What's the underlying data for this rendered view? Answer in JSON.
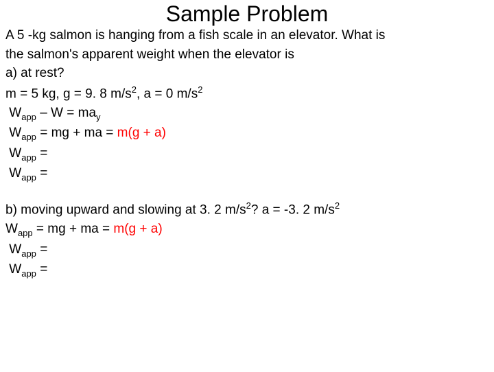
{
  "title": "Sample Problem",
  "intro1": "A 5 -kg salmon is hanging from a fish scale in an elevator. What is",
  "intro2": "the salmon's apparent weight when the elevator is",
  "partA": {
    "question": "a)  at rest?",
    "given": "m = 5 kg, g = 9. 8 m/s",
    "given_sup": "2",
    "given2": ", a = 0 m/s",
    "given2_sup": "2",
    "eq1_pre": "W",
    "eq1_sub": "app",
    "eq1_post": " – W = ma",
    "eq1_sub2": "y",
    "eq2_pre": "W",
    "eq2_sub": "app",
    "eq2_mid": " = mg + ma = ",
    "eq2_highlight": "m(g + a)",
    "eq3_pre": "W",
    "eq3_sub": "app",
    "eq3_post": " =",
    "eq4_pre": "W",
    "eq4_sub": "app",
    "eq4_post": " ="
  },
  "partB": {
    "question_pre": "b) moving upward and slowing at 3. 2 m/s",
    "question_sup": "2",
    "question_mid": "? a = -3. 2 m/s",
    "question_sup2": "2",
    "eq1_pre": "W",
    "eq1_sub": "app",
    "eq1_mid": " =  mg + ma = ",
    "eq1_highlight": "m(g + a)",
    "eq2_pre": "W",
    "eq2_sub": "app",
    "eq2_post": " =",
    "eq3_pre": "W",
    "eq3_sub": "app",
    "eq3_post": " ="
  },
  "colors": {
    "text": "#000000",
    "highlight": "#ff0000",
    "background": "#ffffff"
  },
  "fonts": {
    "title_size": 32,
    "body_size": 19,
    "sup_sub_size": 13
  }
}
